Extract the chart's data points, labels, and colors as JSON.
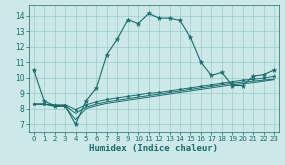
{
  "xlabel": "Humidex (Indice chaleur)",
  "xlim": [
    -0.5,
    23.5
  ],
  "ylim": [
    6.5,
    14.7
  ],
  "xticks": [
    0,
    1,
    2,
    3,
    4,
    5,
    6,
    7,
    8,
    9,
    10,
    11,
    12,
    13,
    14,
    15,
    16,
    17,
    18,
    19,
    20,
    21,
    22,
    23
  ],
  "yticks": [
    7,
    8,
    9,
    10,
    11,
    12,
    13,
    14
  ],
  "bg_color": "#cce8e8",
  "line_color": "#1a6b6b",
  "grid_color": "#99cccc",
  "line1_x": [
    0,
    1,
    2,
    3,
    4,
    5,
    6,
    7,
    8,
    9,
    10,
    11,
    12,
    13,
    14,
    15,
    16,
    17,
    18,
    19,
    20,
    21,
    22,
    23
  ],
  "line1_y": [
    10.5,
    8.5,
    8.2,
    8.2,
    7.0,
    8.5,
    9.35,
    11.5,
    12.5,
    13.75,
    13.5,
    14.15,
    13.85,
    13.85,
    13.7,
    12.6,
    11.0,
    10.15,
    10.35,
    9.5,
    9.5,
    10.1,
    10.2,
    10.5
  ],
  "line2_x": [
    0,
    1,
    2,
    3,
    4,
    5,
    6,
    7,
    8,
    9,
    10,
    11,
    12,
    13,
    14,
    15,
    16,
    17,
    18,
    19,
    20,
    21,
    22,
    23
  ],
  "line2_y": [
    8.3,
    8.3,
    8.25,
    8.25,
    7.95,
    8.25,
    8.45,
    8.6,
    8.7,
    8.8,
    8.9,
    9.0,
    9.05,
    9.15,
    9.25,
    9.35,
    9.45,
    9.55,
    9.65,
    9.75,
    9.85,
    9.9,
    9.98,
    10.1
  ],
  "line3_x": [
    0,
    1,
    2,
    3,
    4,
    5,
    6,
    7,
    8,
    9,
    10,
    11,
    12,
    13,
    14,
    15,
    16,
    17,
    18,
    19,
    20,
    21,
    22,
    23
  ],
  "line3_y": [
    8.3,
    8.3,
    8.2,
    8.2,
    7.7,
    8.1,
    8.3,
    8.45,
    8.55,
    8.65,
    8.75,
    8.85,
    8.95,
    9.05,
    9.15,
    9.25,
    9.35,
    9.45,
    9.55,
    9.65,
    9.72,
    9.78,
    9.85,
    9.92
  ],
  "line4_x": [
    0,
    1,
    2,
    3,
    4,
    5,
    6,
    7,
    8,
    9,
    10,
    11,
    12,
    13,
    14,
    15,
    16,
    17,
    18,
    19,
    20,
    21,
    22,
    23
  ],
  "line4_y": [
    8.3,
    8.3,
    8.15,
    8.15,
    7.3,
    8.0,
    8.2,
    8.35,
    8.45,
    8.55,
    8.65,
    8.75,
    8.85,
    8.95,
    9.05,
    9.15,
    9.25,
    9.35,
    9.45,
    9.55,
    9.62,
    9.68,
    9.78,
    9.88
  ]
}
